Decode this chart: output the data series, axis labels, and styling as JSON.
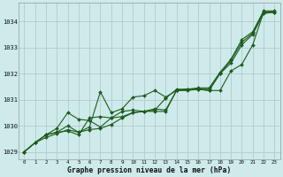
{
  "title": "Graphe pression niveau de la mer (hPa)",
  "bg_color": "#ceeaea",
  "grid_color": "#b0cccc",
  "line_color": "#1e5c1e",
  "marker_color": "#1e5c1e",
  "xlim": [
    -0.5,
    23.5
  ],
  "ylim": [
    1028.7,
    1034.7
  ],
  "yticks": [
    1029,
    1030,
    1031,
    1032,
    1033,
    1034
  ],
  "xticks": [
    0,
    1,
    2,
    3,
    4,
    5,
    6,
    7,
    8,
    9,
    10,
    11,
    12,
    13,
    14,
    15,
    16,
    17,
    18,
    19,
    20,
    21,
    22,
    23
  ],
  "series": [
    [
      1029.0,
      1029.35,
      1029.65,
      1029.75,
      1029.8,
      1029.65,
      1030.3,
      1030.35,
      1030.3,
      1030.55,
      1030.6,
      1030.55,
      1030.55,
      1030.55,
      1031.35,
      1031.4,
      1031.4,
      1031.4,
      1032.0,
      1032.5,
      1033.2,
      1033.55,
      1034.35,
      1034.35
    ],
    [
      1029.0,
      1029.35,
      1029.65,
      1029.9,
      1030.5,
      1030.25,
      1030.2,
      1029.95,
      1030.3,
      1030.35,
      1030.5,
      1030.55,
      1030.6,
      1031.05,
      1031.4,
      1031.4,
      1031.45,
      1031.45,
      1032.05,
      1032.55,
      1033.3,
      1033.6,
      1034.4,
      1034.4
    ],
    [
      1029.0,
      1029.35,
      1029.65,
      1029.75,
      1030.0,
      1029.75,
      1029.85,
      1029.9,
      1030.05,
      1030.3,
      1030.5,
      1030.55,
      1030.65,
      1030.6,
      1031.35,
      1031.4,
      1031.4,
      1031.35,
      1031.35,
      1032.1,
      1032.35,
      1033.1,
      1034.35,
      1034.35
    ],
    [
      1029.0,
      1029.35,
      1029.55,
      1029.7,
      1029.85,
      1029.75,
      1029.95,
      1031.3,
      1030.5,
      1030.65,
      1031.1,
      1031.15,
      1031.35,
      1031.1,
      1031.35,
      1031.35,
      1031.4,
      1031.35,
      1032.0,
      1032.4,
      1033.1,
      1033.5,
      1034.3,
      1034.35
    ]
  ]
}
